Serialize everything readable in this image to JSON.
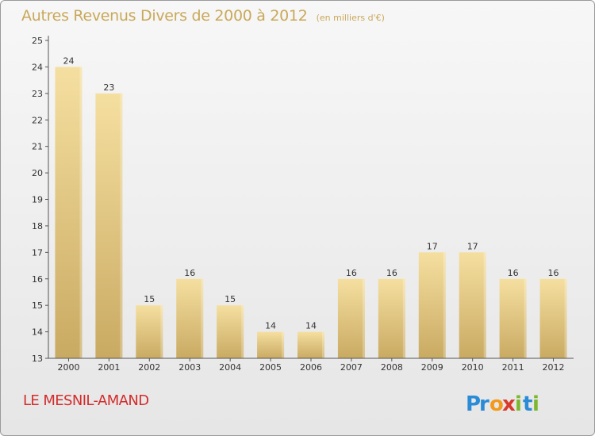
{
  "chart_title": "Autres Revenus Divers de 2000 à 2012",
  "chart_unit": "(en milliers d'€)",
  "place_name": "LE MESNIL-AMAND",
  "logo": {
    "text": "Proxiti",
    "letters": [
      {
        "ch": "P",
        "color": "#2a8bd6"
      },
      {
        "ch": "r",
        "color": "#2a8bd6"
      },
      {
        "ch": "o",
        "color": "#f39a1e"
      },
      {
        "ch": "x",
        "color": "#d83a2c"
      },
      {
        "ch": "i",
        "color": "#7cb82f"
      },
      {
        "ch": "t",
        "color": "#2a8bd6"
      },
      {
        "ch": "i",
        "color": "#7cb82f"
      }
    ]
  },
  "colors": {
    "title": "#c9a85a",
    "place": "#d32c2c",
    "bar_top": "#f5dfa0",
    "bar_bottom": "#c9aa62",
    "axis": "#555555",
    "grid": "#d8d8d8"
  },
  "chart_data": {
    "type": "bar",
    "title": "Autres Revenus Divers de 2000 à 2012",
    "subtitle": "(en milliers d'€)",
    "xlabel": "",
    "ylabel": "",
    "categories": [
      "2000",
      "2001",
      "2002",
      "2003",
      "2004",
      "2005",
      "2006",
      "2007",
      "2008",
      "2009",
      "2010",
      "2011",
      "2012"
    ],
    "values": [
      24,
      23,
      15,
      16,
      15,
      14,
      14,
      16,
      16,
      17,
      17,
      16,
      16
    ],
    "data_labels": [
      "24",
      "23",
      "15",
      "16",
      "15",
      "14",
      "14",
      "16",
      "16",
      "17",
      "17",
      "16",
      "16"
    ],
    "ylim": [
      13,
      25
    ],
    "yticks": [
      13,
      14,
      15,
      16,
      17,
      18,
      19,
      20,
      21,
      22,
      23,
      24,
      25
    ],
    "grid": false,
    "legend": "none"
  }
}
